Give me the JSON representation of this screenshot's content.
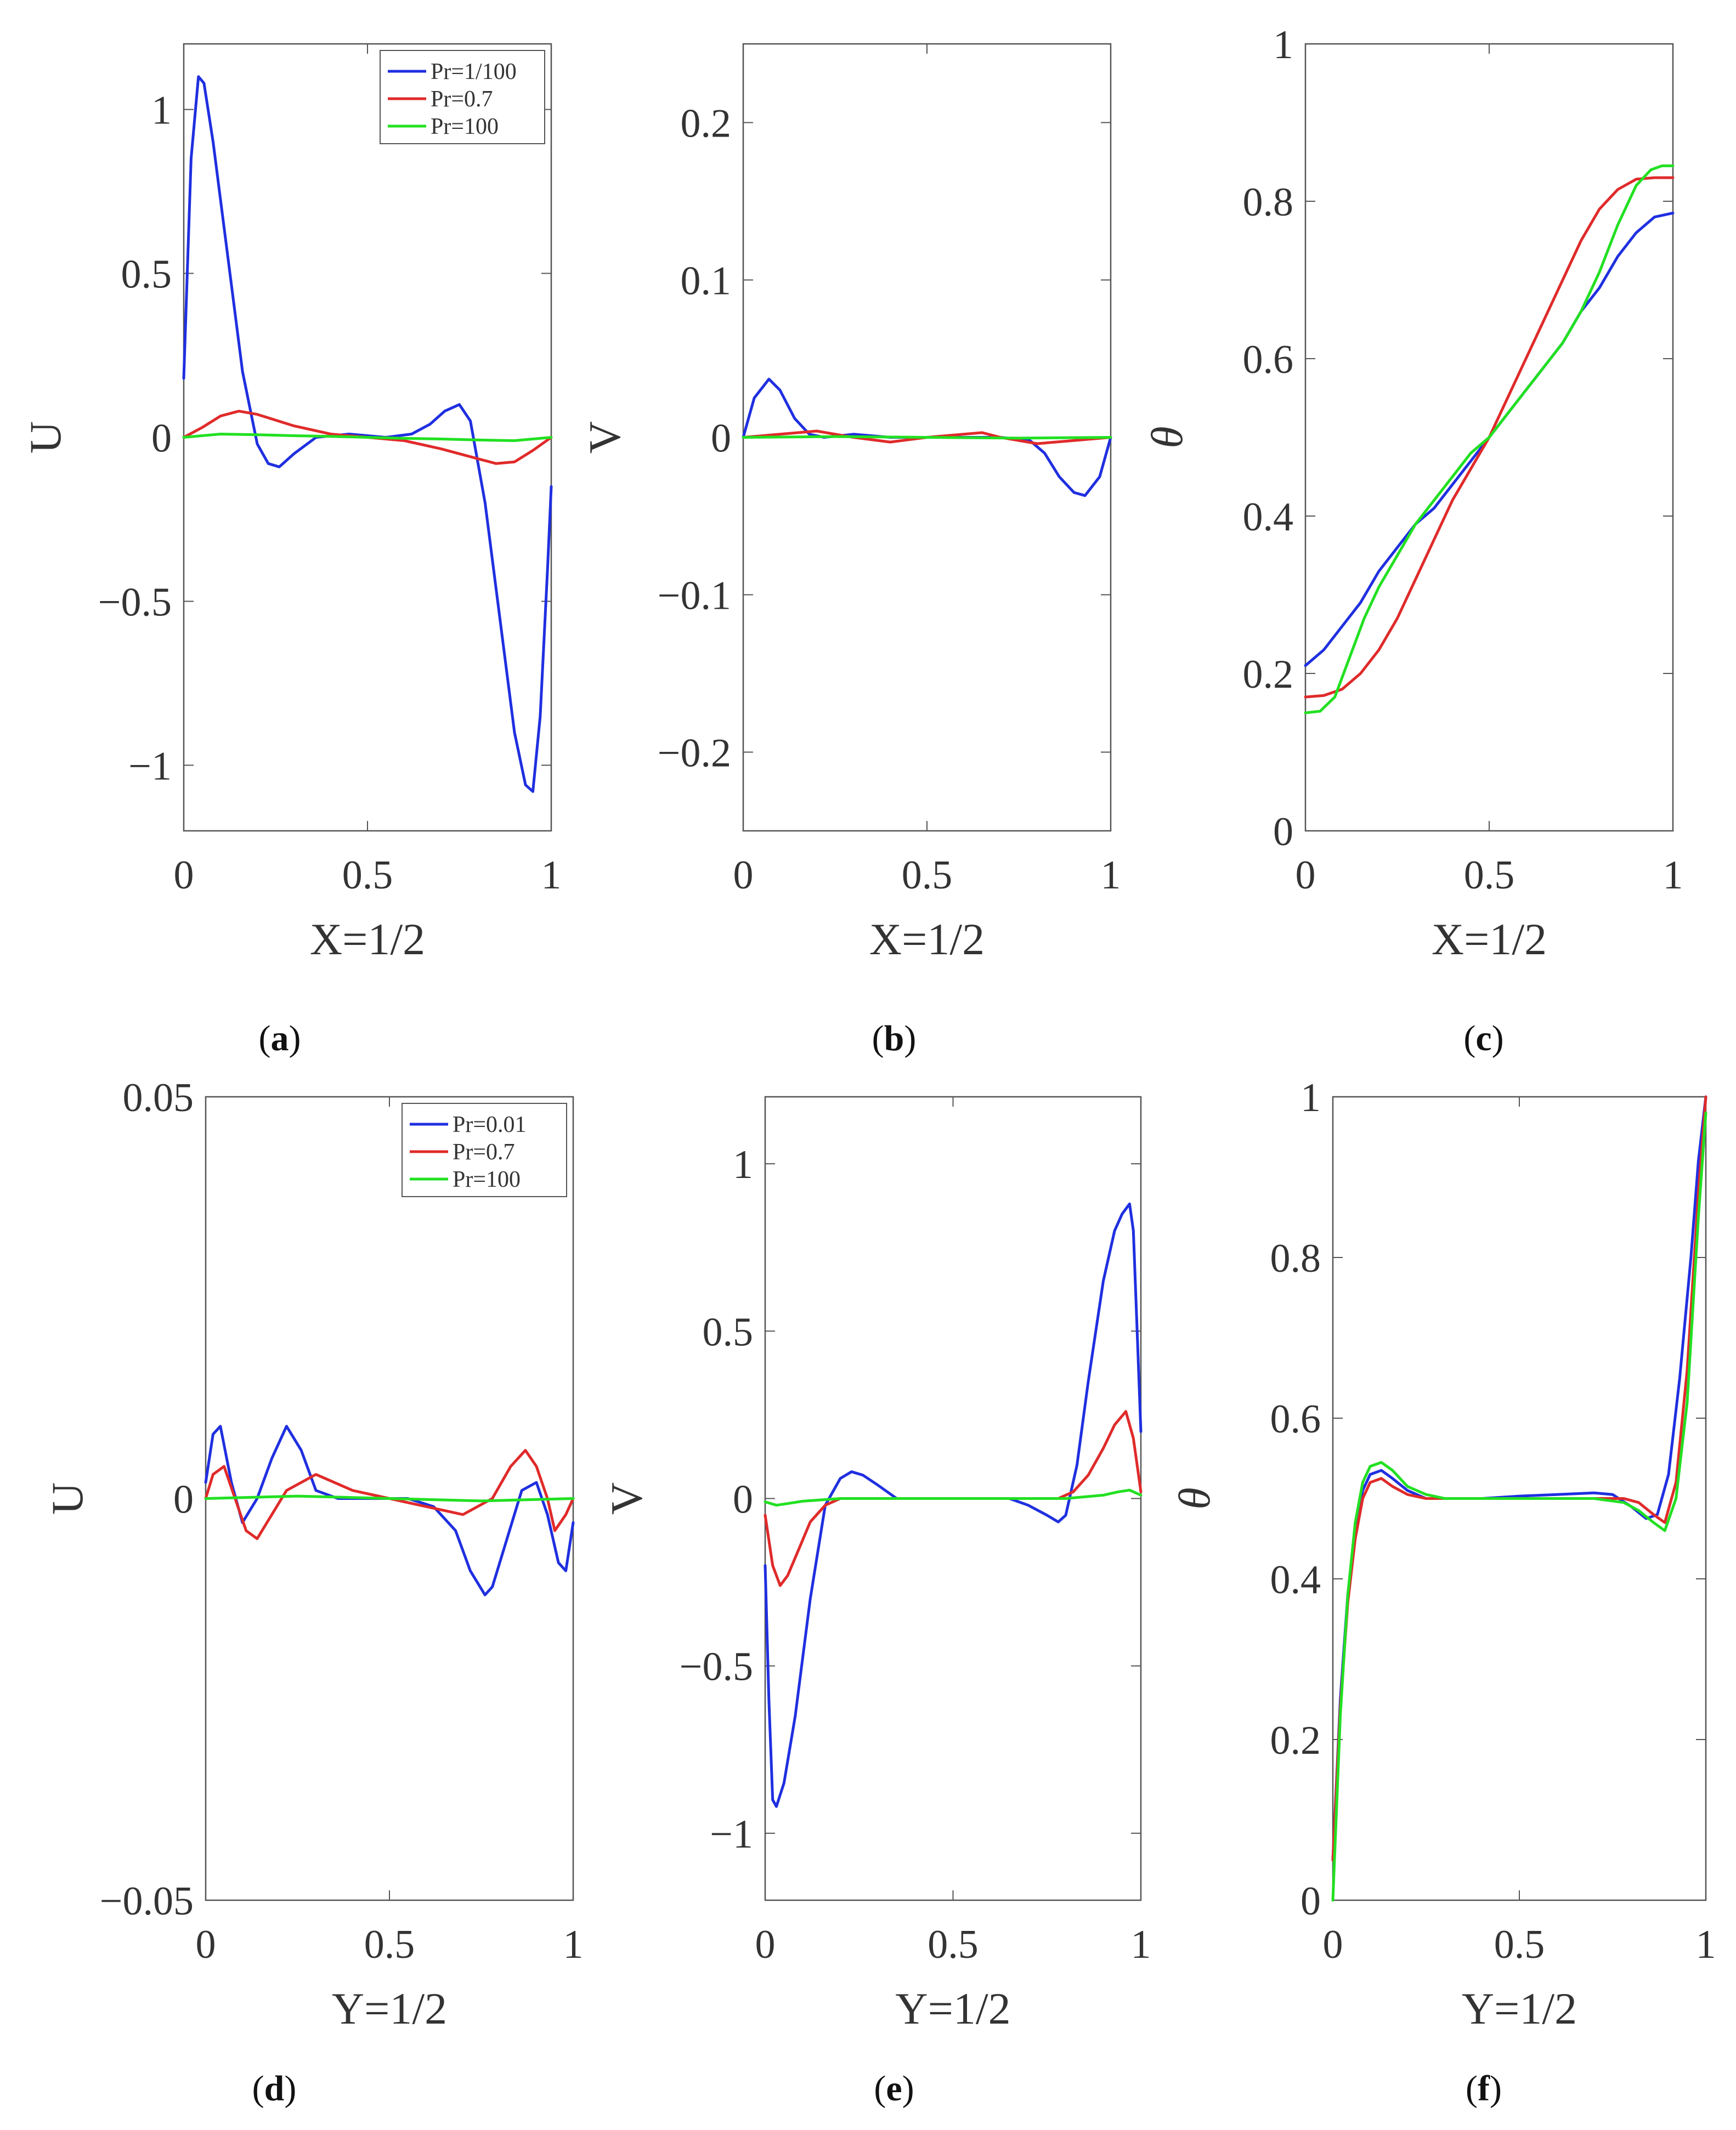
{
  "colors": {
    "blue": "#1f2fe0",
    "red": "#e02a2a",
    "green": "#22e022",
    "axis": "#555555"
  },
  "chart_data": [
    {
      "id": "a",
      "caption": "a",
      "type": "line",
      "xlabel": "X=1/2",
      "ylabel": "U",
      "xlim": [
        0,
        1
      ],
      "ylim": [
        -1.2,
        1.2
      ],
      "xticks": [
        0,
        0.5,
        1
      ],
      "xtick_labels": [
        "0",
        "0.5",
        "1"
      ],
      "yticks": [
        -1,
        -0.5,
        0,
        0.5,
        1
      ],
      "ytick_labels": [
        "−1",
        "−0.5",
        "0",
        "0.5",
        "1"
      ],
      "legend": {
        "position": "top-right",
        "entries": [
          "Pr=1/100",
          "Pr=0.7",
          "Pr=100"
        ]
      },
      "series": [
        {
          "name": "Pr=1/100",
          "color": "blue",
          "x": [
            0,
            0.02,
            0.04,
            0.055,
            0.08,
            0.12,
            0.16,
            0.2,
            0.23,
            0.26,
            0.3,
            0.36,
            0.45,
            0.55,
            0.62,
            0.67,
            0.71,
            0.75,
            0.78,
            0.82,
            0.86,
            0.9,
            0.93,
            0.95,
            0.97,
            0.99,
            1.0
          ],
          "y": [
            0.18,
            0.85,
            1.1,
            1.08,
            0.9,
            0.55,
            0.2,
            -0.02,
            -0.08,
            -0.09,
            -0.05,
            0.0,
            0.01,
            0.0,
            0.01,
            0.04,
            0.08,
            0.1,
            0.05,
            -0.2,
            -0.55,
            -0.9,
            -1.06,
            -1.08,
            -0.85,
            -0.4,
            -0.15
          ]
        },
        {
          "name": "Pr=0.7",
          "color": "red",
          "x": [
            0,
            0.05,
            0.1,
            0.15,
            0.2,
            0.3,
            0.4,
            0.5,
            0.6,
            0.7,
            0.8,
            0.85,
            0.9,
            0.95,
            1.0
          ],
          "y": [
            0.0,
            0.03,
            0.065,
            0.08,
            0.07,
            0.035,
            0.01,
            0.0,
            -0.01,
            -0.035,
            -0.065,
            -0.08,
            -0.075,
            -0.04,
            0.0
          ]
        },
        {
          "name": "Pr=100",
          "color": "green",
          "x": [
            0,
            0.1,
            0.2,
            0.3,
            0.4,
            0.5,
            0.6,
            0.7,
            0.8,
            0.9,
            1.0
          ],
          "y": [
            0.0,
            0.01,
            0.008,
            0.005,
            0.003,
            0.0,
            -0.003,
            -0.005,
            -0.008,
            -0.01,
            0.0
          ]
        }
      ]
    },
    {
      "id": "b",
      "caption": "b",
      "type": "line",
      "xlabel": "X=1/2",
      "ylabel": "V",
      "xlim": [
        0,
        1
      ],
      "ylim": [
        -0.25,
        0.25
      ],
      "xticks": [
        0,
        0.5,
        1
      ],
      "xtick_labels": [
        "0",
        "0.5",
        "1"
      ],
      "yticks": [
        -0.2,
        -0.1,
        0,
        0.1,
        0.2
      ],
      "ytick_labels": [
        "−0.2",
        "−0.1",
        "0",
        "0.1",
        "0.2"
      ],
      "series": [
        {
          "name": "Pr=1/100",
          "color": "blue",
          "x": [
            0,
            0.03,
            0.07,
            0.1,
            0.14,
            0.18,
            0.22,
            0.3,
            0.4,
            0.5,
            0.6,
            0.7,
            0.78,
            0.82,
            0.86,
            0.9,
            0.93,
            0.97,
            1.0
          ],
          "y": [
            0.0,
            0.025,
            0.037,
            0.03,
            0.012,
            0.002,
            0.0,
            0.002,
            0.0,
            0.0,
            0.0,
            0.0,
            -0.002,
            -0.01,
            -0.025,
            -0.035,
            -0.037,
            -0.025,
            0.0
          ]
        },
        {
          "name": "Pr=0.7",
          "color": "red",
          "x": [
            0,
            0.1,
            0.2,
            0.3,
            0.4,
            0.5,
            0.6,
            0.65,
            0.7,
            0.8,
            0.9,
            1.0
          ],
          "y": [
            0.0,
            0.002,
            0.004,
            0.0,
            -0.003,
            0.0,
            0.002,
            0.003,
            0.0,
            -0.004,
            -0.002,
            0.0
          ]
        },
        {
          "name": "Pr=100",
          "color": "green",
          "x": [
            0,
            0.25,
            0.5,
            0.75,
            1.0
          ],
          "y": [
            0.0,
            0.0005,
            0.0,
            -0.0005,
            0.0
          ]
        }
      ]
    },
    {
      "id": "c",
      "caption": "c",
      "type": "line",
      "xlabel": "X=1/2",
      "ylabel": "θ",
      "xlim": [
        0,
        1
      ],
      "ylim": [
        0,
        1
      ],
      "xticks": [
        0,
        0.5,
        1
      ],
      "xtick_labels": [
        "0",
        "0.5",
        "1"
      ],
      "yticks": [
        0,
        0.2,
        0.4,
        0.6,
        0.8,
        1
      ],
      "ytick_labels": [
        "0",
        "0.2",
        "0.4",
        "0.6",
        "0.8",
        "1"
      ],
      "series": [
        {
          "name": "Pr=1/100",
          "color": "blue",
          "x": [
            0,
            0.05,
            0.1,
            0.15,
            0.2,
            0.25,
            0.3,
            0.35,
            0.4,
            0.45,
            0.5,
            0.55,
            0.6,
            0.65,
            0.7,
            0.75,
            0.8,
            0.85,
            0.9,
            0.95,
            1.0
          ],
          "y": [
            0.21,
            0.23,
            0.26,
            0.29,
            0.33,
            0.36,
            0.39,
            0.41,
            0.44,
            0.47,
            0.5,
            0.53,
            0.56,
            0.59,
            0.62,
            0.66,
            0.69,
            0.73,
            0.76,
            0.78,
            0.785
          ]
        },
        {
          "name": "Pr=0.7",
          "color": "red",
          "x": [
            0,
            0.05,
            0.1,
            0.15,
            0.2,
            0.25,
            0.3,
            0.35,
            0.4,
            0.45,
            0.5,
            0.55,
            0.6,
            0.65,
            0.7,
            0.75,
            0.8,
            0.85,
            0.9,
            0.95,
            1.0
          ],
          "y": [
            0.17,
            0.172,
            0.18,
            0.2,
            0.23,
            0.27,
            0.32,
            0.37,
            0.42,
            0.46,
            0.5,
            0.55,
            0.6,
            0.65,
            0.7,
            0.75,
            0.79,
            0.815,
            0.828,
            0.83,
            0.83
          ]
        },
        {
          "name": "Pr=100",
          "color": "green",
          "x": [
            0,
            0.04,
            0.08,
            0.12,
            0.16,
            0.2,
            0.25,
            0.3,
            0.35,
            0.4,
            0.45,
            0.5,
            0.55,
            0.6,
            0.65,
            0.7,
            0.75,
            0.8,
            0.85,
            0.9,
            0.94,
            0.97,
            1.0
          ],
          "y": [
            0.15,
            0.152,
            0.17,
            0.22,
            0.27,
            0.31,
            0.35,
            0.39,
            0.42,
            0.45,
            0.48,
            0.5,
            0.53,
            0.56,
            0.59,
            0.62,
            0.66,
            0.71,
            0.77,
            0.82,
            0.84,
            0.845,
            0.845
          ]
        }
      ]
    },
    {
      "id": "d",
      "caption": "d",
      "type": "line",
      "xlabel": "Y=1/2",
      "ylabel": "U",
      "xlim": [
        0,
        1
      ],
      "ylim": [
        -0.05,
        0.05
      ],
      "xticks": [
        0,
        0.5,
        1
      ],
      "xtick_labels": [
        "0",
        "0.5",
        "1"
      ],
      "yticks": [
        -0.05,
        0,
        0.05
      ],
      "ytick_labels": [
        "−0.05",
        "0",
        "0.05"
      ],
      "legend": {
        "position": "top-right",
        "entries": [
          "Pr=0.01",
          "Pr=0.7",
          "Pr=100"
        ]
      },
      "series": [
        {
          "name": "Pr=0.01",
          "color": "blue",
          "x": [
            0,
            0.02,
            0.04,
            0.07,
            0.1,
            0.14,
            0.18,
            0.22,
            0.26,
            0.3,
            0.36,
            0.45,
            0.55,
            0.62,
            0.68,
            0.72,
            0.76,
            0.78,
            0.82,
            0.86,
            0.9,
            0.93,
            0.96,
            0.98,
            1.0
          ],
          "y": [
            0.002,
            0.008,
            0.009,
            0.002,
            -0.003,
            0.0,
            0.005,
            0.009,
            0.006,
            0.001,
            0.0,
            0.0,
            0.0,
            -0.001,
            -0.004,
            -0.009,
            -0.012,
            -0.011,
            -0.005,
            0.001,
            0.002,
            -0.002,
            -0.008,
            -0.009,
            -0.003
          ]
        },
        {
          "name": "Pr=0.7",
          "color": "red",
          "x": [
            0,
            0.02,
            0.05,
            0.08,
            0.11,
            0.14,
            0.18,
            0.22,
            0.3,
            0.4,
            0.5,
            0.6,
            0.7,
            0.78,
            0.83,
            0.87,
            0.9,
            0.93,
            0.95,
            0.98,
            1.0
          ],
          "y": [
            0.0,
            0.003,
            0.004,
            0.0,
            -0.004,
            -0.005,
            -0.002,
            0.001,
            0.003,
            0.001,
            0.0,
            -0.001,
            -0.002,
            0.0,
            0.004,
            0.006,
            0.004,
            0.0,
            -0.004,
            -0.002,
            0.0
          ]
        },
        {
          "name": "Pr=100",
          "color": "green",
          "x": [
            0,
            0.25,
            0.5,
            0.75,
            1.0
          ],
          "y": [
            0.0,
            0.0003,
            0.0,
            -0.0003,
            0.0
          ]
        }
      ]
    },
    {
      "id": "e",
      "caption": "e",
      "type": "line",
      "xlabel": "Y=1/2",
      "ylabel": "V",
      "xlim": [
        0,
        1
      ],
      "ylim": [
        -1.2,
        1.2
      ],
      "xticks": [
        0,
        0.5,
        1
      ],
      "xtick_labels": [
        "0",
        "0.5",
        "1"
      ],
      "yticks": [
        -1,
        -0.5,
        0,
        0.5,
        1
      ],
      "ytick_labels": [
        "−1",
        "−0.5",
        "0",
        "0.5",
        "1"
      ],
      "series": [
        {
          "name": "Pr=0.01",
          "color": "blue",
          "x": [
            0,
            0.01,
            0.02,
            0.03,
            0.05,
            0.08,
            0.12,
            0.16,
            0.2,
            0.23,
            0.26,
            0.3,
            0.35,
            0.45,
            0.55,
            0.65,
            0.7,
            0.75,
            0.78,
            0.8,
            0.83,
            0.86,
            0.9,
            0.93,
            0.95,
            0.97,
            0.98,
            0.99,
            1.0
          ],
          "y": [
            -0.2,
            -0.6,
            -0.9,
            -0.92,
            -0.85,
            -0.65,
            -0.3,
            -0.02,
            0.06,
            0.08,
            0.07,
            0.04,
            0.0,
            0.0,
            0.0,
            0.0,
            -0.02,
            -0.05,
            -0.07,
            -0.05,
            0.1,
            0.35,
            0.65,
            0.8,
            0.85,
            0.88,
            0.8,
            0.5,
            0.2
          ]
        },
        {
          "name": "Pr=0.7",
          "color": "red",
          "x": [
            0,
            0.02,
            0.04,
            0.06,
            0.09,
            0.12,
            0.16,
            0.2,
            0.3,
            0.5,
            0.7,
            0.78,
            0.82,
            0.86,
            0.9,
            0.93,
            0.96,
            0.98,
            1.0
          ],
          "y": [
            -0.05,
            -0.2,
            -0.26,
            -0.23,
            -0.15,
            -0.07,
            -0.02,
            0.0,
            0.0,
            0.0,
            0.0,
            0.0,
            0.02,
            0.07,
            0.15,
            0.22,
            0.26,
            0.18,
            0.02
          ]
        },
        {
          "name": "Pr=100",
          "color": "green",
          "x": [
            0,
            0.03,
            0.06,
            0.1,
            0.2,
            0.5,
            0.8,
            0.9,
            0.94,
            0.97,
            1.0
          ],
          "y": [
            -0.01,
            -0.02,
            -0.015,
            -0.008,
            0.0,
            0.0,
            0.0,
            0.01,
            0.02,
            0.025,
            0.01
          ]
        }
      ]
    },
    {
      "id": "f",
      "caption": "f",
      "type": "line",
      "xlabel": "Y=1/2",
      "ylabel": "θ",
      "xlim": [
        0,
        1
      ],
      "ylim": [
        0,
        1
      ],
      "xticks": [
        0,
        0.5,
        1
      ],
      "xtick_labels": [
        "0",
        "0.5",
        "1"
      ],
      "yticks": [
        0,
        0.2,
        0.4,
        0.6,
        0.8,
        1
      ],
      "ytick_labels": [
        "0",
        "0.2",
        "0.4",
        "0.6",
        "0.8",
        "1"
      ],
      "series": [
        {
          "name": "Pr=0.01",
          "color": "blue",
          "x": [
            0,
            0.02,
            0.04,
            0.06,
            0.08,
            0.1,
            0.13,
            0.16,
            0.2,
            0.25,
            0.3,
            0.4,
            0.5,
            0.6,
            0.7,
            0.75,
            0.8,
            0.84,
            0.87,
            0.9,
            0.93,
            0.96,
            0.98,
            1.0
          ],
          "y": [
            0.05,
            0.25,
            0.38,
            0.46,
            0.51,
            0.53,
            0.535,
            0.525,
            0.51,
            0.5,
            0.5,
            0.5,
            0.503,
            0.505,
            0.507,
            0.505,
            0.49,
            0.475,
            0.48,
            0.53,
            0.65,
            0.8,
            0.92,
            1.0
          ]
        },
        {
          "name": "Pr=0.7",
          "color": "red",
          "x": [
            0,
            0.02,
            0.04,
            0.06,
            0.08,
            0.1,
            0.13,
            0.16,
            0.2,
            0.25,
            0.3,
            0.4,
            0.5,
            0.6,
            0.7,
            0.78,
            0.82,
            0.86,
            0.89,
            0.92,
            0.95,
            0.98,
            1.0
          ],
          "y": [
            0.05,
            0.24,
            0.37,
            0.45,
            0.5,
            0.52,
            0.525,
            0.515,
            0.505,
            0.5,
            0.5,
            0.5,
            0.5,
            0.5,
            0.5,
            0.5,
            0.495,
            0.48,
            0.47,
            0.52,
            0.66,
            0.88,
            1.0
          ]
        },
        {
          "name": "Pr=100",
          "color": "green",
          "x": [
            0,
            0.02,
            0.04,
            0.06,
            0.08,
            0.1,
            0.13,
            0.16,
            0.2,
            0.25,
            0.3,
            0.4,
            0.5,
            0.6,
            0.7,
            0.78,
            0.82,
            0.86,
            0.89,
            0.92,
            0.95,
            0.98,
            1.0
          ],
          "y": [
            0.0,
            0.23,
            0.38,
            0.47,
            0.52,
            0.54,
            0.545,
            0.535,
            0.515,
            0.505,
            0.5,
            0.5,
            0.5,
            0.5,
            0.5,
            0.495,
            0.485,
            0.47,
            0.46,
            0.5,
            0.62,
            0.85,
            0.98
          ]
        }
      ]
    }
  ]
}
